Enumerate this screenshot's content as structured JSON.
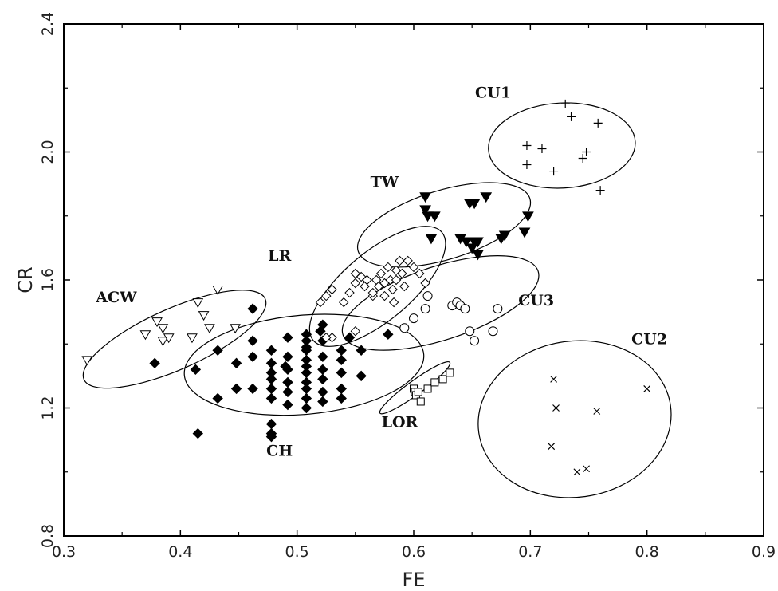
{
  "chart_data": {
    "type": "scatter",
    "title": "",
    "xlabel": "FE",
    "ylabel": "CR",
    "xlim": [
      0.3,
      0.9
    ],
    "ylim": [
      0.8,
      2.4
    ],
    "xticks": [
      0.3,
      0.4,
      0.5,
      0.6,
      0.7,
      0.8,
      0.9
    ],
    "yticks": [
      0.8,
      1.2,
      1.6,
      2.0,
      2.4
    ],
    "xtick_labels": [
      "0.3",
      "0.4",
      "0.5",
      "0.6",
      "0.7",
      "0.8",
      "0.9"
    ],
    "ytick_labels": [
      "0.8",
      "1.2",
      "1.6",
      "2.0",
      "2.4"
    ],
    "grid": false,
    "series": [
      {
        "name": "ACW",
        "marker": "triangle-down-open",
        "label_at": [
          0.345,
          1.53
        ],
        "ellipse": {
          "cx": 0.395,
          "cy": 1.415,
          "rx": 0.085,
          "ry": 0.095,
          "angle": 24
        },
        "points": [
          [
            0.32,
            1.35
          ],
          [
            0.37,
            1.43
          ],
          [
            0.38,
            1.47
          ],
          [
            0.385,
            1.45
          ],
          [
            0.385,
            1.41
          ],
          [
            0.39,
            1.42
          ],
          [
            0.41,
            1.42
          ],
          [
            0.415,
            1.53
          ],
          [
            0.42,
            1.49
          ],
          [
            0.425,
            1.45
          ],
          [
            0.432,
            1.57
          ],
          [
            0.447,
            1.45
          ]
        ]
      },
      {
        "name": "CH",
        "marker": "diamond-filled",
        "label_at": [
          0.485,
          1.05
        ],
        "ellipse": {
          "cx": 0.506,
          "cy": 1.335,
          "rx": 0.103,
          "ry": 0.155,
          "angle": 5
        },
        "points": [
          [
            0.378,
            1.34
          ],
          [
            0.413,
            1.32
          ],
          [
            0.415,
            1.12
          ],
          [
            0.432,
            1.23
          ],
          [
            0.432,
            1.38
          ],
          [
            0.448,
            1.26
          ],
          [
            0.448,
            1.34
          ],
          [
            0.462,
            1.51
          ],
          [
            0.462,
            1.41
          ],
          [
            0.462,
            1.36
          ],
          [
            0.462,
            1.26
          ],
          [
            0.478,
            1.38
          ],
          [
            0.478,
            1.34
          ],
          [
            0.478,
            1.31
          ],
          [
            0.478,
            1.26
          ],
          [
            0.478,
            1.23
          ],
          [
            0.478,
            1.15
          ],
          [
            0.478,
            1.12
          ],
          [
            0.478,
            1.11
          ],
          [
            0.478,
            1.29
          ],
          [
            0.492,
            1.36
          ],
          [
            0.492,
            1.32
          ],
          [
            0.492,
            1.28
          ],
          [
            0.492,
            1.25
          ],
          [
            0.492,
            1.21
          ],
          [
            0.492,
            1.42
          ],
          [
            0.508,
            1.41
          ],
          [
            0.508,
            1.38
          ],
          [
            0.508,
            1.35
          ],
          [
            0.508,
            1.33
          ],
          [
            0.508,
            1.31
          ],
          [
            0.508,
            1.28
          ],
          [
            0.508,
            1.26
          ],
          [
            0.508,
            1.23
          ],
          [
            0.508,
            1.2
          ],
          [
            0.508,
            1.39
          ],
          [
            0.508,
            1.43
          ],
          [
            0.522,
            1.41
          ],
          [
            0.522,
            1.36
          ],
          [
            0.522,
            1.32
          ],
          [
            0.522,
            1.29
          ],
          [
            0.522,
            1.25
          ],
          [
            0.522,
            1.22
          ],
          [
            0.522,
            1.46
          ],
          [
            0.538,
            1.38
          ],
          [
            0.538,
            1.35
          ],
          [
            0.538,
            1.31
          ],
          [
            0.538,
            1.26
          ],
          [
            0.538,
            1.23
          ],
          [
            0.545,
            1.42
          ],
          [
            0.555,
            1.38
          ],
          [
            0.555,
            1.3
          ],
          [
            0.578,
            1.43
          ],
          [
            0.52,
            1.44
          ],
          [
            0.49,
            1.33
          ]
        ]
      },
      {
        "name": "LR",
        "marker": "diamond-open",
        "label_at": [
          0.485,
          1.66
        ],
        "ellipse": {
          "cx": 0.569,
          "cy": 1.58,
          "rx": 0.072,
          "ry": 0.107,
          "angle": 40
        },
        "points": [
          [
            0.52,
            1.53
          ],
          [
            0.525,
            1.55
          ],
          [
            0.53,
            1.57
          ],
          [
            0.54,
            1.53
          ],
          [
            0.545,
            1.56
          ],
          [
            0.55,
            1.44
          ],
          [
            0.55,
            1.62
          ],
          [
            0.55,
            1.59
          ],
          [
            0.555,
            1.61
          ],
          [
            0.558,
            1.58
          ],
          [
            0.56,
            1.6
          ],
          [
            0.565,
            1.55
          ],
          [
            0.565,
            1.56
          ],
          [
            0.568,
            1.6
          ],
          [
            0.57,
            1.58
          ],
          [
            0.572,
            1.62
          ],
          [
            0.575,
            1.59
          ],
          [
            0.575,
            1.55
          ],
          [
            0.578,
            1.64
          ],
          [
            0.58,
            1.6
          ],
          [
            0.582,
            1.57
          ],
          [
            0.585,
            1.63
          ],
          [
            0.585,
            1.6
          ],
          [
            0.588,
            1.66
          ],
          [
            0.59,
            1.62
          ],
          [
            0.592,
            1.58
          ],
          [
            0.595,
            1.66
          ],
          [
            0.6,
            1.64
          ],
          [
            0.605,
            1.62
          ],
          [
            0.61,
            1.59
          ],
          [
            0.53,
            1.42
          ],
          [
            0.525,
            1.42
          ],
          [
            0.583,
            1.53
          ]
        ]
      },
      {
        "name": "TW",
        "marker": "triangle-down-filled",
        "label_at": [
          0.575,
          1.89
        ],
        "ellipse": {
          "cx": 0.626,
          "cy": 1.772,
          "rx": 0.077,
          "ry": 0.108,
          "angle": 17
        },
        "points": [
          [
            0.61,
            1.86
          ],
          [
            0.61,
            1.82
          ],
          [
            0.612,
            1.8
          ],
          [
            0.615,
            1.73
          ],
          [
            0.618,
            1.8
          ],
          [
            0.645,
            1.72
          ],
          [
            0.648,
            1.84
          ],
          [
            0.652,
            1.84
          ],
          [
            0.65,
            1.7
          ],
          [
            0.652,
            1.72
          ],
          [
            0.655,
            1.72
          ],
          [
            0.662,
            1.86
          ],
          [
            0.675,
            1.73
          ],
          [
            0.678,
            1.74
          ],
          [
            0.695,
            1.75
          ],
          [
            0.698,
            1.8
          ],
          [
            0.64,
            1.73
          ],
          [
            0.655,
            1.68
          ]
        ]
      },
      {
        "name": "CU1",
        "marker": "plus",
        "label_at": [
          0.668,
          2.17
        ],
        "ellipse": {
          "cx": 0.727,
          "cy": 2.02,
          "rx": 0.063,
          "ry": 0.133,
          "angle": 3
        },
        "points": [
          [
            0.697,
            2.02
          ],
          [
            0.697,
            1.96
          ],
          [
            0.71,
            2.01
          ],
          [
            0.72,
            1.94
          ],
          [
            0.73,
            2.15
          ],
          [
            0.735,
            2.11
          ],
          [
            0.745,
            1.98
          ],
          [
            0.748,
            2.0
          ],
          [
            0.758,
            2.09
          ],
          [
            0.76,
            1.88
          ]
        ]
      },
      {
        "name": "CU3",
        "marker": "circle-open",
        "label_at": [
          0.705,
          1.52
        ],
        "ellipse": {
          "cx": 0.623,
          "cy": 1.528,
          "rx": 0.088,
          "ry": 0.115,
          "angle": 18
        },
        "points": [
          [
            0.592,
            1.45
          ],
          [
            0.6,
            1.48
          ],
          [
            0.61,
            1.51
          ],
          [
            0.612,
            1.55
          ],
          [
            0.633,
            1.52
          ],
          [
            0.637,
            1.53
          ],
          [
            0.64,
            1.52
          ],
          [
            0.644,
            1.51
          ],
          [
            0.648,
            1.44
          ],
          [
            0.652,
            1.41
          ],
          [
            0.668,
            1.44
          ],
          [
            0.672,
            1.51
          ]
        ]
      },
      {
        "name": "LOR",
        "marker": "square-open",
        "label_at": [
          0.588,
          1.14
        ],
        "ellipse": {
          "cx": 0.601,
          "cy": 1.263,
          "rx": 0.037,
          "ry": 0.022,
          "angle": 36
        },
        "points": [
          [
            0.6,
            1.26
          ],
          [
            0.601,
            1.25
          ],
          [
            0.602,
            1.24
          ],
          [
            0.604,
            1.25
          ],
          [
            0.606,
            1.22
          ],
          [
            0.612,
            1.26
          ],
          [
            0.618,
            1.28
          ],
          [
            0.625,
            1.29
          ],
          [
            0.631,
            1.31
          ]
        ]
      },
      {
        "name": "CU2",
        "marker": "x",
        "label_at": [
          0.802,
          1.4
        ],
        "ellipse": {
          "cx": 0.738,
          "cy": 1.165,
          "rx": 0.083,
          "ry": 0.244,
          "angle": 8
        },
        "points": [
          [
            0.718,
            1.08
          ],
          [
            0.72,
            1.29
          ],
          [
            0.722,
            1.2
          ],
          [
            0.74,
            1.0
          ],
          [
            0.748,
            1.01
          ],
          [
            0.757,
            1.19
          ],
          [
            0.8,
            1.26
          ]
        ]
      }
    ]
  }
}
